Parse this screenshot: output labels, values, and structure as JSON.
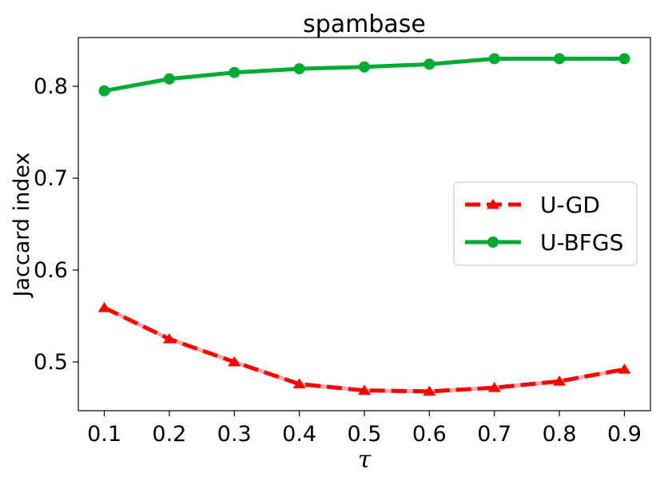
{
  "chart_data": {
    "type": "line",
    "title": "spambase",
    "xlabel": "τ",
    "ylabel": "Jaccard index",
    "x": [
      0.1,
      0.2,
      0.3,
      0.4,
      0.5,
      0.6,
      0.7,
      0.8,
      0.9
    ],
    "x_tick_labels": [
      "0.1",
      "0.2",
      "0.3",
      "0.4",
      "0.5",
      "0.6",
      "0.7",
      "0.8",
      "0.9"
    ],
    "y_ticks": [
      0.5,
      0.6,
      0.7,
      0.8
    ],
    "y_tick_labels": [
      "0.5",
      "0.6",
      "0.7",
      "0.8"
    ],
    "xlim": [
      0.06,
      0.94
    ],
    "ylim": [
      0.447,
      0.853
    ],
    "grid": false,
    "legend_position": "right",
    "series": [
      {
        "name": "U-GD",
        "color": "#ff0000",
        "marker": "triangle",
        "linestyle": "dashed",
        "values": [
          0.559,
          0.525,
          0.5,
          0.476,
          0.469,
          0.468,
          0.472,
          0.479,
          0.492
        ]
      },
      {
        "name": "U-BFGS",
        "color": "#00aa33",
        "marker": "circle",
        "linestyle": "solid",
        "values": [
          0.795,
          0.808,
          0.815,
          0.819,
          0.821,
          0.824,
          0.83,
          0.83,
          0.83
        ]
      }
    ]
  }
}
